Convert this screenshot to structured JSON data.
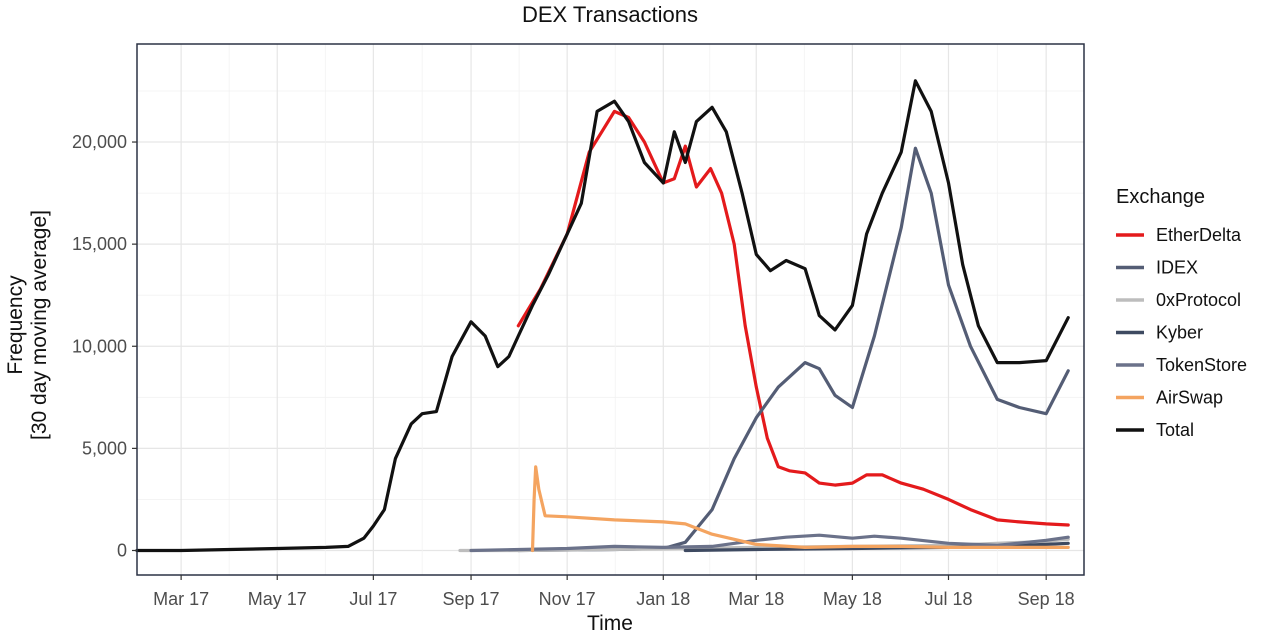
{
  "chart_data": {
    "type": "line",
    "title": "DEX Transactions",
    "xlabel": "Time",
    "ylabel_lines": [
      "Frequency",
      "[30 day moving average]"
    ],
    "x_ticks": [
      "Mar 17",
      "May 17",
      "Jul 17",
      "Sep 17",
      "Nov 17",
      "Jan 18",
      "Mar 18",
      "May 18",
      "Jul 18",
      "Sep 18"
    ],
    "x_tick_dates": [
      "2017-03-01",
      "2017-05-01",
      "2017-07-01",
      "2017-09-01",
      "2017-11-01",
      "2018-01-01",
      "2018-03-01",
      "2018-05-01",
      "2018-07-01",
      "2018-09-01"
    ],
    "xlim": [
      "2017-02-01",
      "2018-09-25"
    ],
    "y_ticks": [
      0,
      5000,
      10000,
      15000,
      20000
    ],
    "y_tick_labels": [
      "0",
      "5,000",
      "10,000",
      "15,000",
      "20,000"
    ],
    "ylim": [
      -1200,
      24800
    ],
    "grid": true,
    "legend": {
      "title": "Exchange",
      "position": "right"
    },
    "series": [
      {
        "name": "EtherDelta",
        "color": "#e41a1c",
        "x": [
          "2017-10-01",
          "2017-10-15",
          "2017-11-01",
          "2017-11-15",
          "2017-12-01",
          "2017-12-10",
          "2017-12-20",
          "2018-01-01",
          "2018-01-08",
          "2018-01-15",
          "2018-01-22",
          "2018-01-31",
          "2018-02-07",
          "2018-02-15",
          "2018-02-22",
          "2018-03-01",
          "2018-03-08",
          "2018-03-15",
          "2018-03-22",
          "2018-04-01",
          "2018-04-10",
          "2018-04-20",
          "2018-05-01",
          "2018-05-10",
          "2018-05-20",
          "2018-06-01",
          "2018-06-15",
          "2018-07-01",
          "2018-07-15",
          "2018-08-01",
          "2018-08-15",
          "2018-09-01",
          "2018-09-15"
        ],
        "y": [
          11000,
          12800,
          15500,
          19500,
          21500,
          21200,
          20000,
          18000,
          18200,
          19800,
          17800,
          18700,
          17500,
          15000,
          11000,
          8000,
          5500,
          4100,
          3900,
          3800,
          3300,
          3200,
          3300,
          3700,
          3700,
          3300,
          3000,
          2500,
          2000,
          1500,
          1400,
          1300,
          1250
        ]
      },
      {
        "name": "IDEX",
        "color": "#545d75",
        "x": [
          "2017-10-01",
          "2017-12-01",
          "2018-01-01",
          "2018-01-15",
          "2018-02-01",
          "2018-02-15",
          "2018-03-01",
          "2018-03-15",
          "2018-04-01",
          "2018-04-10",
          "2018-04-20",
          "2018-05-01",
          "2018-05-15",
          "2018-06-01",
          "2018-06-10",
          "2018-06-20",
          "2018-07-01",
          "2018-07-15",
          "2018-08-01",
          "2018-08-15",
          "2018-09-01",
          "2018-09-15"
        ],
        "y": [
          0,
          50,
          100,
          400,
          2000,
          4500,
          6500,
          8000,
          9200,
          8900,
          7600,
          7000,
          10500,
          15800,
          19700,
          17500,
          13000,
          10000,
          7400,
          7000,
          6700,
          8800
        ]
      },
      {
        "name": "0xProtocol",
        "color": "#bdbdbd",
        "x": [
          "2017-08-25",
          "2017-10-01",
          "2018-01-01",
          "2018-03-01",
          "2018-05-01",
          "2018-07-01",
          "2018-09-01",
          "2018-09-15"
        ],
        "y": [
          0,
          0,
          80,
          150,
          200,
          250,
          450,
          550
        ]
      },
      {
        "name": "Kyber",
        "color": "#3e4a61",
        "x": [
          "2018-01-15",
          "2018-03-01",
          "2018-05-01",
          "2018-07-01",
          "2018-08-01",
          "2018-09-01",
          "2018-09-15"
        ],
        "y": [
          0,
          50,
          100,
          150,
          200,
          300,
          350
        ]
      },
      {
        "name": "TokenStore",
        "color": "#6b728a",
        "x": [
          "2017-09-01",
          "2017-11-01",
          "2017-12-01",
          "2018-01-01",
          "2018-02-01",
          "2018-03-01",
          "2018-03-20",
          "2018-04-10",
          "2018-05-01",
          "2018-05-15",
          "2018-06-01",
          "2018-07-01",
          "2018-08-01",
          "2018-09-01",
          "2018-09-15"
        ],
        "y": [
          0,
          100,
          200,
          150,
          200,
          500,
          650,
          750,
          600,
          700,
          600,
          350,
          250,
          500,
          650
        ]
      },
      {
        "name": "AirSwap",
        "color": "#f4a460",
        "x": [
          "2017-10-10",
          "2017-10-11",
          "2017-10-12",
          "2017-10-14",
          "2017-10-18",
          "2017-11-01",
          "2017-12-01",
          "2018-01-01",
          "2018-01-15",
          "2018-02-01",
          "2018-03-01",
          "2018-04-01",
          "2018-05-01",
          "2018-06-01",
          "2018-07-01",
          "2018-08-01",
          "2018-09-01",
          "2018-09-15"
        ],
        "y": [
          0,
          2500,
          4100,
          3000,
          1700,
          1650,
          1500,
          1400,
          1300,
          800,
          300,
          150,
          200,
          200,
          150,
          150,
          150,
          150
        ]
      },
      {
        "name": "Total",
        "color": "#111111",
        "x": [
          "2017-02-01",
          "2017-03-01",
          "2017-04-01",
          "2017-05-01",
          "2017-06-01",
          "2017-06-15",
          "2017-06-25",
          "2017-07-01",
          "2017-07-08",
          "2017-07-15",
          "2017-07-25",
          "2017-08-01",
          "2017-08-10",
          "2017-08-20",
          "2017-09-01",
          "2017-09-10",
          "2017-09-18",
          "2017-09-25",
          "2017-10-01",
          "2017-10-10",
          "2017-10-20",
          "2017-11-01",
          "2017-11-10",
          "2017-11-20",
          "2017-12-01",
          "2017-12-10",
          "2017-12-20",
          "2018-01-01",
          "2018-01-08",
          "2018-01-15",
          "2018-01-22",
          "2018-02-01",
          "2018-02-10",
          "2018-02-20",
          "2018-03-01",
          "2018-03-10",
          "2018-03-20",
          "2018-04-01",
          "2018-04-10",
          "2018-04-20",
          "2018-05-01",
          "2018-05-10",
          "2018-05-20",
          "2018-06-01",
          "2018-06-10",
          "2018-06-20",
          "2018-07-01",
          "2018-07-10",
          "2018-07-20",
          "2018-08-01",
          "2018-08-15",
          "2018-09-01",
          "2018-09-15"
        ],
        "y": [
          0,
          0,
          50,
          100,
          150,
          200,
          600,
          1200,
          2000,
          4500,
          6200,
          6700,
          6800,
          9500,
          11200,
          10500,
          9000,
          9500,
          10500,
          12000,
          13500,
          15500,
          17000,
          21500,
          22000,
          21000,
          19000,
          18000,
          20500,
          19000,
          21000,
          21700,
          20500,
          17500,
          14500,
          13700,
          14200,
          13800,
          11500,
          10800,
          12000,
          15500,
          17500,
          19500,
          23000,
          21500,
          18000,
          14000,
          11000,
          9200,
          9200,
          9300,
          11400
        ]
      }
    ]
  }
}
